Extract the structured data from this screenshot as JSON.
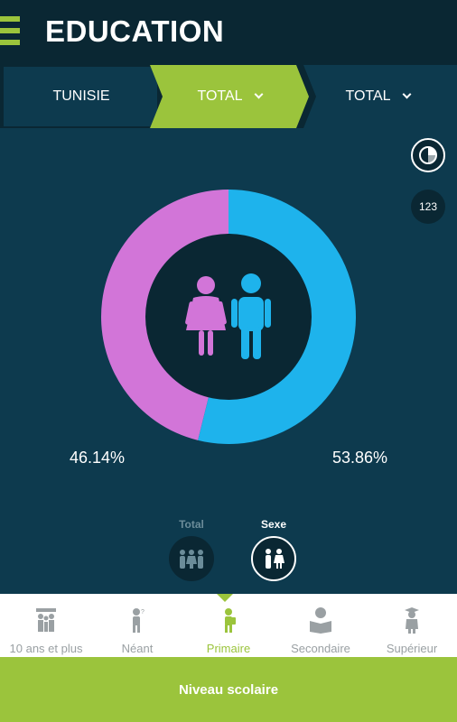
{
  "app": {
    "title": "EDUCATION"
  },
  "filters": {
    "region": "TUNISIE",
    "total_1": "TOTAL",
    "total_2": "TOTAL"
  },
  "toggles": {
    "numeric": "123",
    "pie_icon": "pie-chart-icon"
  },
  "colors": {
    "female": "#d275d8",
    "male": "#1eb3ec",
    "accent": "#9bc43c",
    "background": "#0d3a4e",
    "dark": "#0a2733"
  },
  "chart_data": {
    "type": "pie",
    "categories": [
      "Female",
      "Male"
    ],
    "values": [
      46.14,
      53.86
    ],
    "labels": [
      "46.14%",
      "53.86%"
    ],
    "title": "",
    "legend": "none"
  },
  "view_switch": {
    "total_label": "Total",
    "sexe_label": "Sexe",
    "selected": "Sexe"
  },
  "levels": [
    {
      "label": "10 ans et plus",
      "icon": "group-icon",
      "active": false
    },
    {
      "label": "Néant",
      "icon": "person-icon",
      "active": false
    },
    {
      "label": "Primaire",
      "icon": "schoolchild-icon",
      "active": true
    },
    {
      "label": "Secondaire",
      "icon": "reader-icon",
      "active": false
    },
    {
      "label": "Supérieur",
      "icon": "graduate-icon",
      "active": false
    }
  ],
  "footer": {
    "label": "Niveau scolaire"
  }
}
